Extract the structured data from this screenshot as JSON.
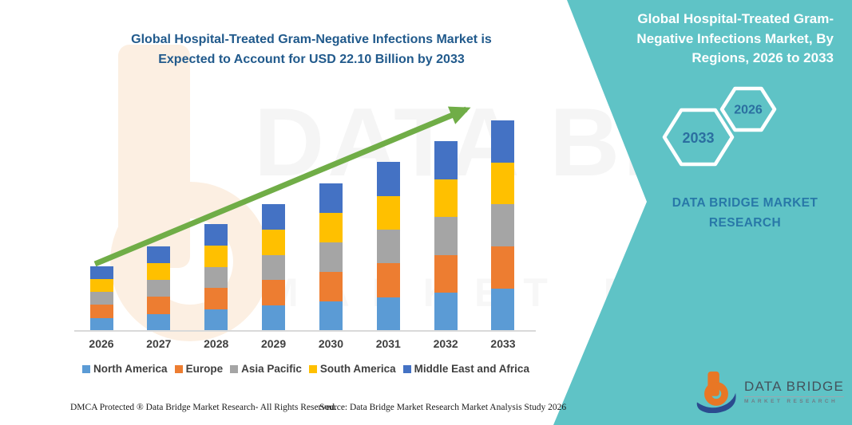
{
  "header": {
    "title_lines": [
      "Global Hospital-Treated Gram-Negative Infections Market is",
      "Expected to Account for USD 22.10 Billion by 2033"
    ],
    "title_color": "#215A8C"
  },
  "right_panel": {
    "background_color": "#5FC3C6",
    "title_lines": [
      "Global Hospital-Treated Gram-",
      "Negative Infections Market, By",
      "Regions, 2026 to 2033"
    ],
    "hexagons": [
      {
        "label": "2033"
      },
      {
        "label": "2026"
      }
    ],
    "brand_text_lines": [
      "DATA BRIDGE MARKET",
      "RESEARCH"
    ],
    "logo": {
      "name": "DATA BRIDGE",
      "subtext": "MARKET RESEARCH",
      "icon_orange": "#E87725",
      "icon_navy": "#2B4B8F"
    }
  },
  "watermark": {
    "line1": "DATA BRIDGE",
    "line2": "MARKET RESEARCH"
  },
  "footer": {
    "left": "DMCA Protected ® Data Bridge Market Research-  All Rights Reserved.",
    "source": "Source: Data Bridge Market Research  Market Analysis Study 2026"
  },
  "chart_data": {
    "type": "bar",
    "stacked": true,
    "title": "Global Hospital-Treated Gram-Negative Infections Market is Expected to Account for USD 22.10 Billion by 2033",
    "unit": "USD Billion",
    "categories": [
      "2026",
      "2027",
      "2028",
      "2029",
      "2030",
      "2031",
      "2032",
      "2033"
    ],
    "series": [
      {
        "name": "North America",
        "color": "#5B9BD5",
        "values": [
          1.36,
          1.78,
          2.24,
          2.66,
          3.1,
          3.54,
          3.98,
          4.42
        ]
      },
      {
        "name": "Europe",
        "color": "#ED7D31",
        "values": [
          1.36,
          1.78,
          2.24,
          2.66,
          3.1,
          3.54,
          3.98,
          4.42
        ]
      },
      {
        "name": "Asia Pacific",
        "color": "#A5A5A5",
        "values": [
          1.36,
          1.78,
          2.24,
          2.66,
          3.1,
          3.54,
          3.98,
          4.42
        ]
      },
      {
        "name": "South America",
        "color": "#FFC000",
        "values": [
          1.36,
          1.78,
          2.24,
          2.66,
          3.1,
          3.54,
          3.98,
          4.42
        ]
      },
      {
        "name": "Middle East and Africa",
        "color": "#4472C4",
        "values": [
          1.36,
          1.78,
          2.24,
          2.66,
          3.1,
          3.54,
          3.98,
          4.42
        ]
      }
    ],
    "totals": [
      6.8,
      8.9,
      11.2,
      13.3,
      15.5,
      17.7,
      19.9,
      22.1
    ],
    "ylim": [
      0,
      22.1
    ],
    "gridlines": false,
    "y_axis_visible": false,
    "legend_position": "bottom",
    "annotations": {
      "trend_arrow": true,
      "trend_arrow_color": "#70AD47"
    }
  }
}
